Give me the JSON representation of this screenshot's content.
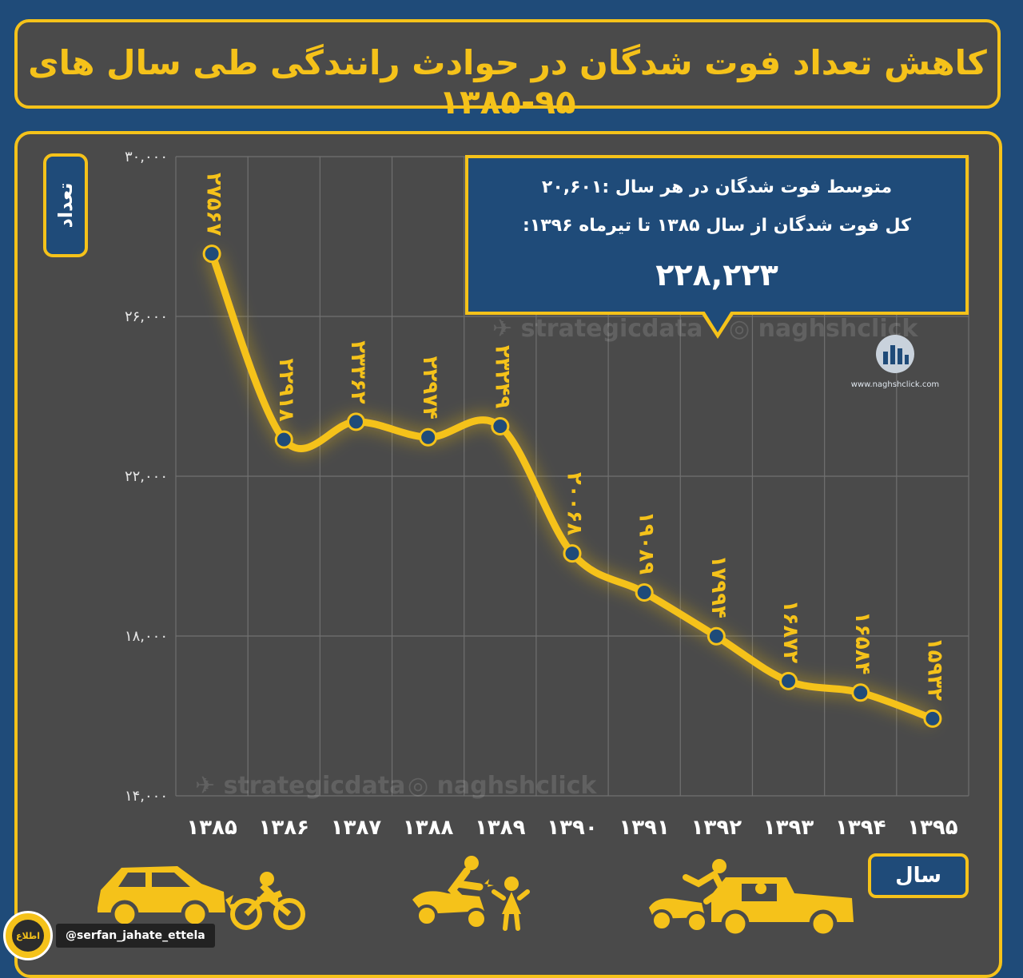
{
  "title": "کاهش تعداد فوت شدگان در حوادث رانندگی طی سال های ۹۵-۱۳۸۵",
  "info": {
    "line1": "متوسط فوت شدگان در هر سال :۲۰,۶۰۱",
    "line2": "کل فوت شدگان از سال ۱۳۸۵ تا تیرماه ۱۳۹۶:",
    "total": "۲۲۸,۲۲۳"
  },
  "watermarks": {
    "telegram": "strategicdata",
    "instagram": "naghshclick"
  },
  "logo": {
    "caption": "www.naghshclick.com"
  },
  "handle": {
    "badge": "اطلاع",
    "username": "@serfan_jahate_ettela"
  },
  "colors": {
    "background": "#1f4b79",
    "panel": "#4a4a4a",
    "accent": "#f5c21a",
    "point": "#1f4b79"
  },
  "icons": [
    "car-motorcycle-crash-icon",
    "scooter-pedestrian-crash-icon",
    "pedestrian-truck-crash-icon"
  ],
  "chart_data": {
    "type": "line",
    "ylabel": "تعداد",
    "xlabel": "سال",
    "categories": [
      "۱۳۸۵",
      "۱۳۸۶",
      "۱۳۸۷",
      "۱۳۸۸",
      "۱۳۸۹",
      "۱۳۹۰",
      "۱۳۹۱",
      "۱۳۹۲",
      "۱۳۹۳",
      "۱۳۹۴",
      "۱۳۹۵"
    ],
    "values": [
      27567,
      22918,
      23362,
      22974,
      23249,
      20068,
      19089,
      17994,
      16872,
      16584,
      15932
    ],
    "value_labels": [
      "۲۷۵۶۷",
      "۲۲۹۱۸",
      "۲۳۳۶۲",
      "۲۲۹۷۴",
      "۲۳۲۴۹",
      "۲۰۰۶۸",
      "۱۹۰۸۹",
      "۱۷۹۹۴",
      "۱۶۸۷۲",
      "۱۶۵۸۴",
      "۱۵۹۳۲"
    ],
    "ylim": [
      14000,
      30000
    ],
    "yticks": [
      14000,
      18000,
      22000,
      26000,
      30000
    ],
    "ytick_labels": [
      "۱۴,۰۰۰",
      "۱۸,۰۰۰",
      "۲۲,۰۰۰",
      "۲۶,۰۰۰",
      "۳۰,۰۰۰"
    ],
    "grid": true
  }
}
